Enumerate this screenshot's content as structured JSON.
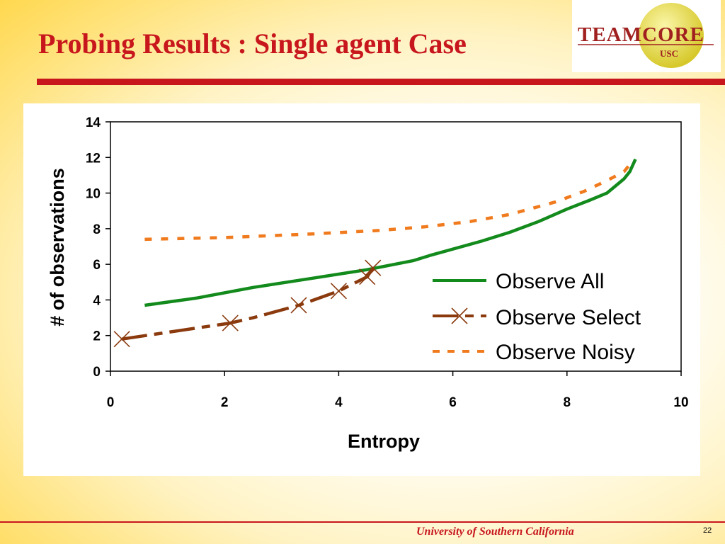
{
  "slide": {
    "title": "Probing Results : Single agent Case",
    "footer": "University of Southern California",
    "page_number": "22"
  },
  "logo": {
    "name": "TEAMCORE",
    "sub": "USC",
    "colors": {
      "circle": "#e6d83a",
      "text": "#a02020"
    }
  },
  "colors": {
    "title": "#c8161d",
    "observe_all": "#138a1c",
    "observe_select": "#8b3a0e",
    "observe_noisy": "#f07b1e"
  },
  "chart_data": {
    "type": "line",
    "title": "",
    "xlabel": "Entropy",
    "ylabel": "# of observations",
    "xlim": [
      0,
      10
    ],
    "ylim": [
      0,
      14
    ],
    "xticks": [
      0,
      2,
      4,
      6,
      8,
      10
    ],
    "yticks": [
      0,
      2,
      4,
      6,
      8,
      10,
      12,
      14
    ],
    "grid": false,
    "legend_position": "right",
    "series": [
      {
        "name": "Observe All",
        "style": "solid",
        "color": "#138a1c",
        "x": [
          0.6,
          1.5,
          2.5,
          3.5,
          4.5,
          5.3,
          5.6,
          6.5,
          7.0,
          7.5,
          8.0,
          8.4,
          8.7,
          9.0,
          9.1,
          9.2
        ],
        "y": [
          3.7,
          4.1,
          4.7,
          5.2,
          5.7,
          6.2,
          6.5,
          7.3,
          7.8,
          8.4,
          9.1,
          9.6,
          10.0,
          10.8,
          11.2,
          11.9
        ]
      },
      {
        "name": "Observe Select",
        "style": "dashed-x",
        "color": "#8b3a0e",
        "x": [
          0.2,
          2.1,
          2.5,
          3.3,
          4.0,
          4.5,
          4.6
        ],
        "y": [
          1.8,
          2.7,
          3.0,
          3.7,
          4.5,
          5.3,
          5.8
        ],
        "markers_x": [
          0.2,
          2.1,
          3.3,
          4.0,
          4.5,
          4.6
        ],
        "markers_y": [
          1.8,
          2.7,
          3.7,
          4.5,
          5.3,
          5.8
        ]
      },
      {
        "name": "Observe Noisy",
        "style": "dotted",
        "color": "#f07b1e",
        "x": [
          0.6,
          2.0,
          3.5,
          4.7,
          5.5,
          6.3,
          7.0,
          7.8,
          8.3,
          8.7,
          9.0,
          9.1
        ],
        "y": [
          7.4,
          7.5,
          7.7,
          7.9,
          8.1,
          8.4,
          8.8,
          9.5,
          10.1,
          10.7,
          11.2,
          11.6
        ]
      }
    ]
  }
}
